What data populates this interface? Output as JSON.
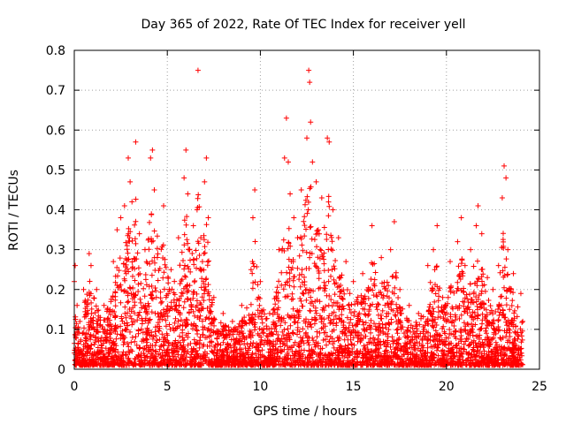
{
  "chart_data": {
    "type": "scatter",
    "title": "Day 365 of 2022, Rate Of TEC Index for receiver yell",
    "xlabel": "GPS time / hours",
    "ylabel": "ROTI / TECUs",
    "xlim": [
      0,
      25
    ],
    "ylim": [
      0,
      0.8
    ],
    "xticks": [
      0,
      5,
      10,
      15,
      20,
      25
    ],
    "yticks": [
      0,
      0.1,
      0.2,
      0.3,
      0.4,
      0.5,
      0.6,
      0.7,
      0.8
    ],
    "grid": true,
    "marker": "plus",
    "series_color": "#ff0000",
    "series": [
      {
        "name": "ROTI",
        "points": [
          [
            0.0,
            0.22
          ],
          [
            0.05,
            0.26
          ],
          [
            0.15,
            0.16
          ],
          [
            0.3,
            0.12
          ],
          [
            0.5,
            0.2
          ],
          [
            0.8,
            0.29
          ],
          [
            0.9,
            0.26
          ],
          [
            1.2,
            0.2
          ],
          [
            1.6,
            0.16
          ],
          [
            2.1,
            0.27
          ],
          [
            2.3,
            0.35
          ],
          [
            2.5,
            0.38
          ],
          [
            2.7,
            0.41
          ],
          [
            2.9,
            0.53
          ],
          [
            3.0,
            0.47
          ],
          [
            3.1,
            0.42
          ],
          [
            3.3,
            0.57
          ],
          [
            3.5,
            0.34
          ],
          [
            3.8,
            0.3
          ],
          [
            4.1,
            0.53
          ],
          [
            4.2,
            0.55
          ],
          [
            4.3,
            0.45
          ],
          [
            4.8,
            0.41
          ],
          [
            5.2,
            0.25
          ],
          [
            5.6,
            0.33
          ],
          [
            5.9,
            0.48
          ],
          [
            6.0,
            0.55
          ],
          [
            6.1,
            0.44
          ],
          [
            6.4,
            0.36
          ],
          [
            6.6,
            0.4
          ],
          [
            6.65,
            0.75
          ],
          [
            6.8,
            0.33
          ],
          [
            7.0,
            0.47
          ],
          [
            7.1,
            0.53
          ],
          [
            7.2,
            0.38
          ],
          [
            7.5,
            0.18
          ],
          [
            8.0,
            0.14
          ],
          [
            8.5,
            0.12
          ],
          [
            9.0,
            0.16
          ],
          [
            9.5,
            0.25
          ],
          [
            9.6,
            0.38
          ],
          [
            9.7,
            0.45
          ],
          [
            10.0,
            0.22
          ],
          [
            10.5,
            0.14
          ],
          [
            11.0,
            0.3
          ],
          [
            11.3,
            0.53
          ],
          [
            11.4,
            0.63
          ],
          [
            11.5,
            0.52
          ],
          [
            11.6,
            0.44
          ],
          [
            11.8,
            0.38
          ],
          [
            12.0,
            0.33
          ],
          [
            12.2,
            0.45
          ],
          [
            12.5,
            0.58
          ],
          [
            12.6,
            0.75
          ],
          [
            12.65,
            0.72
          ],
          [
            12.7,
            0.62
          ],
          [
            12.8,
            0.52
          ],
          [
            13.0,
            0.47
          ],
          [
            13.3,
            0.43
          ],
          [
            13.6,
            0.58
          ],
          [
            13.7,
            0.57
          ],
          [
            13.9,
            0.4
          ],
          [
            14.2,
            0.33
          ],
          [
            14.6,
            0.27
          ],
          [
            15.0,
            0.22
          ],
          [
            15.5,
            0.24
          ],
          [
            16.0,
            0.36
          ],
          [
            16.5,
            0.28
          ],
          [
            17.0,
            0.3
          ],
          [
            17.2,
            0.37
          ],
          [
            17.5,
            0.2
          ],
          [
            18.0,
            0.16
          ],
          [
            18.5,
            0.14
          ],
          [
            19.0,
            0.26
          ],
          [
            19.3,
            0.3
          ],
          [
            19.5,
            0.36
          ],
          [
            19.8,
            0.18
          ],
          [
            20.2,
            0.27
          ],
          [
            20.6,
            0.32
          ],
          [
            20.8,
            0.38
          ],
          [
            21.0,
            0.26
          ],
          [
            21.3,
            0.3
          ],
          [
            21.6,
            0.36
          ],
          [
            21.7,
            0.41
          ],
          [
            21.9,
            0.34
          ],
          [
            22.2,
            0.23
          ],
          [
            22.5,
            0.2
          ],
          [
            22.8,
            0.26
          ],
          [
            23.0,
            0.43
          ],
          [
            23.1,
            0.51
          ],
          [
            23.2,
            0.48
          ],
          [
            23.3,
            0.3
          ],
          [
            23.6,
            0.24
          ],
          [
            24.0,
            0.19
          ],
          [
            24.1,
            0.12
          ]
        ]
      }
    ]
  }
}
